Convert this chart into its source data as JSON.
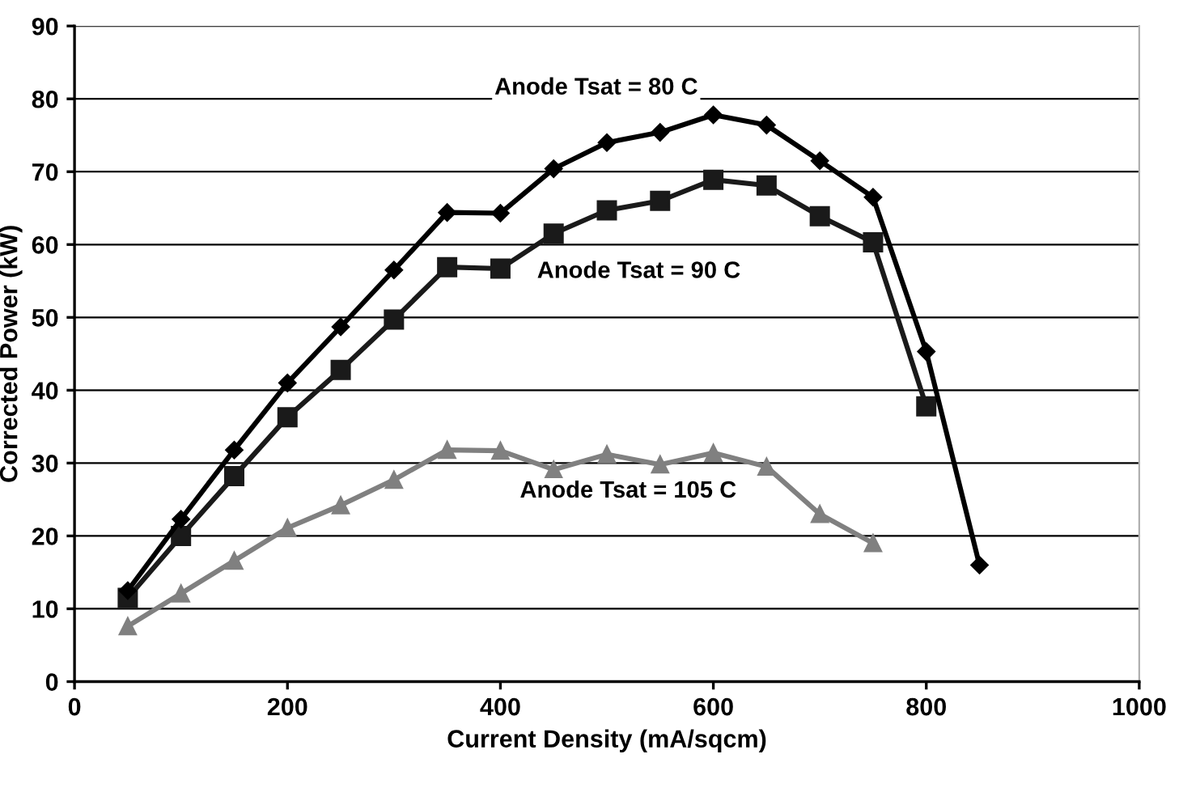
{
  "chart_data": {
    "type": "line",
    "xlabel": "Current Density (mA/sqcm)",
    "ylabel": "Corrected Power (kW)",
    "xlim": [
      0,
      1000
    ],
    "xticks": [
      0,
      200,
      400,
      600,
      800,
      1000
    ],
    "ylim": [
      0,
      90
    ],
    "yticks": [
      0,
      10,
      20,
      30,
      40,
      50,
      60,
      70,
      80,
      90
    ],
    "grid": "y",
    "x": [
      50,
      100,
      150,
      200,
      250,
      300,
      350,
      400,
      450,
      500,
      550,
      600,
      650,
      700,
      750,
      800,
      850
    ],
    "series": [
      {
        "name": "Anode Tsat = 80 C",
        "color": "#000000",
        "marker": "diamond",
        "values": [
          12.5,
          22.3,
          31.8,
          41,
          48.7,
          56.5,
          64.4,
          64.3,
          70.4,
          74,
          75.4,
          77.8,
          76.4,
          71.5,
          66.5,
          45.3,
          16
        ]
      },
      {
        "name": "Anode Tsat = 90 C",
        "color": "#1a1a1a",
        "marker": "square",
        "values": [
          11.5,
          20,
          28.2,
          36.3,
          42.8,
          49.7,
          56.9,
          56.7,
          61.5,
          64.7,
          66,
          68.9,
          68.1,
          63.9,
          60.3,
          37.8,
          null
        ]
      },
      {
        "name": "Anode Tsat = 105 C",
        "color": "#808080",
        "marker": "triangle",
        "values": [
          7.6,
          12.1,
          16.6,
          21.1,
          24.2,
          27.7,
          31.8,
          31.7,
          29.1,
          31.2,
          29.8,
          31.4,
          29.5,
          23,
          19,
          null,
          null
        ]
      }
    ]
  }
}
